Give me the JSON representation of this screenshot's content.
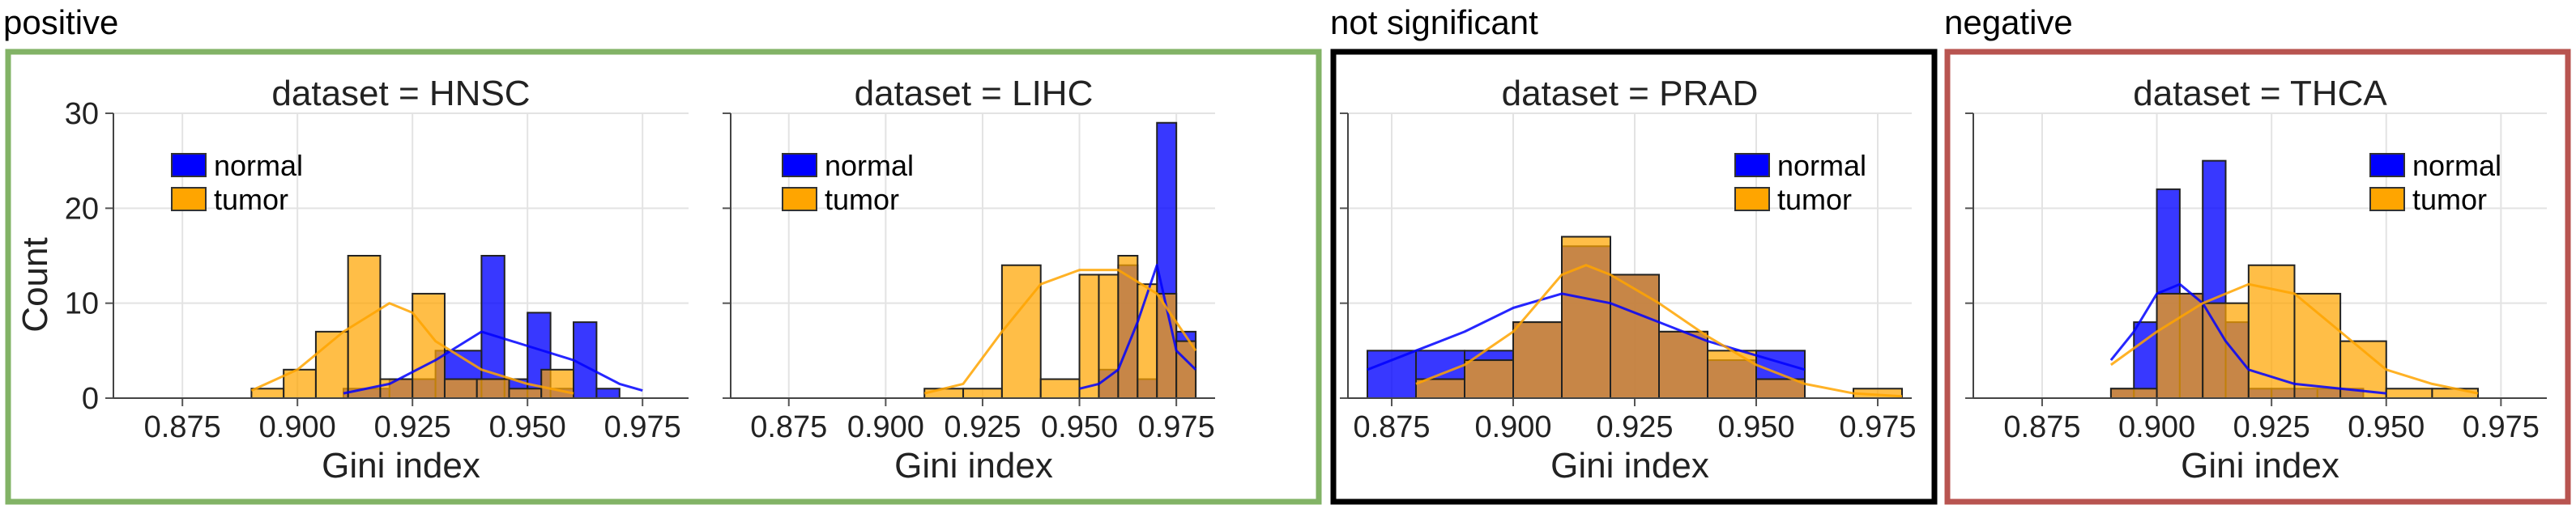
{
  "groups": [
    {
      "label": "positive",
      "color": "#82b366"
    },
    {
      "label": "not significant",
      "color": "#000000"
    },
    {
      "label": "negative",
      "color": "#b85450"
    }
  ],
  "colors": {
    "normal": "#0000ff",
    "tumor": "#ffa500"
  },
  "chart_data": [
    {
      "type": "histogram",
      "group": "positive",
      "title": "dataset = HNSC",
      "xlabel": "Gini index",
      "ylabel": "Count",
      "xlim": [
        0.86,
        0.985
      ],
      "ylim": [
        0,
        30
      ],
      "xticks": [
        "0.875",
        "0.900",
        "0.925",
        "0.950",
        "0.975"
      ],
      "yticks": [
        "0",
        "10",
        "20",
        "30"
      ],
      "grid": true,
      "legend": {
        "position": "upper-left",
        "entries": [
          "normal",
          "tumor"
        ]
      },
      "series": [
        {
          "name": "normal",
          "bins": [
            [
              0.91,
              0.92,
              1
            ],
            [
              0.92,
              0.93,
              2
            ],
            [
              0.93,
              0.94,
              5
            ],
            [
              0.94,
              0.945,
              15
            ],
            [
              0.945,
              0.95,
              2
            ],
            [
              0.95,
              0.955,
              9
            ],
            [
              0.955,
              0.96,
              1
            ],
            [
              0.96,
              0.965,
              8
            ],
            [
              0.965,
              0.97,
              1
            ]
          ],
          "kde": [
            [
              0.91,
              0.5
            ],
            [
              0.92,
              1.5
            ],
            [
              0.93,
              4
            ],
            [
              0.94,
              7
            ],
            [
              0.95,
              5.5
            ],
            [
              0.96,
              4
            ],
            [
              0.97,
              1.5
            ],
            [
              0.975,
              0.8
            ]
          ]
        },
        {
          "name": "tumor",
          "bins": [
            [
              0.89,
              0.897,
              1
            ],
            [
              0.897,
              0.904,
              3
            ],
            [
              0.904,
              0.911,
              7
            ],
            [
              0.911,
              0.918,
              15
            ],
            [
              0.918,
              0.925,
              2
            ],
            [
              0.925,
              0.932,
              11
            ],
            [
              0.932,
              0.939,
              2
            ],
            [
              0.939,
              0.946,
              2
            ],
            [
              0.946,
              0.953,
              1
            ],
            [
              0.953,
              0.96,
              3
            ]
          ],
          "kde": [
            [
              0.89,
              0.8
            ],
            [
              0.9,
              3
            ],
            [
              0.91,
              7
            ],
            [
              0.92,
              10
            ],
            [
              0.925,
              9
            ],
            [
              0.93,
              6
            ],
            [
              0.94,
              3
            ],
            [
              0.95,
              1.5
            ],
            [
              0.96,
              0.5
            ]
          ]
        }
      ]
    },
    {
      "type": "histogram",
      "group": "positive",
      "title": "dataset = LIHC",
      "xlabel": "Gini index",
      "ylabel": "",
      "xlim": [
        0.86,
        0.985
      ],
      "ylim": [
        0,
        30
      ],
      "xticks": [
        "0.875",
        "0.900",
        "0.925",
        "0.950",
        "0.975"
      ],
      "yticks": [],
      "grid": true,
      "legend": {
        "position": "upper-left",
        "entries": [
          "normal",
          "tumor"
        ]
      },
      "series": [
        {
          "name": "normal",
          "bins": [
            [
              0.955,
              0.96,
              3
            ],
            [
              0.96,
              0.965,
              14
            ],
            [
              0.965,
              0.97,
              2
            ],
            [
              0.97,
              0.975,
              29
            ],
            [
              0.975,
              0.98,
              7
            ]
          ],
          "kde": [
            [
              0.95,
              1
            ],
            [
              0.955,
              1.5
            ],
            [
              0.96,
              3
            ],
            [
              0.965,
              8
            ],
            [
              0.97,
              14
            ],
            [
              0.975,
              5
            ],
            [
              0.98,
              3
            ]
          ]
        },
        {
          "name": "tumor",
          "bins": [
            [
              0.91,
              0.92,
              1
            ],
            [
              0.92,
              0.93,
              1
            ],
            [
              0.93,
              0.94,
              14
            ],
            [
              0.94,
              0.95,
              2
            ],
            [
              0.95,
              0.955,
              13
            ],
            [
              0.955,
              0.96,
              13
            ],
            [
              0.96,
              0.965,
              15
            ],
            [
              0.965,
              0.97,
              12
            ],
            [
              0.97,
              0.975,
              11
            ],
            [
              0.975,
              0.98,
              6
            ]
          ],
          "kde": [
            [
              0.91,
              0.5
            ],
            [
              0.92,
              1.5
            ],
            [
              0.93,
              7
            ],
            [
              0.94,
              12
            ],
            [
              0.95,
              13.5
            ],
            [
              0.96,
              13.5
            ],
            [
              0.97,
              11
            ],
            [
              0.98,
              5
            ]
          ]
        }
      ]
    },
    {
      "type": "histogram",
      "group": "not significant",
      "title": "dataset = PRAD",
      "xlabel": "Gini index",
      "ylabel": "",
      "xlim": [
        0.866,
        0.982
      ],
      "ylim": [
        0,
        30
      ],
      "xticks": [
        "0.875",
        "0.900",
        "0.925",
        "0.950",
        "0.975"
      ],
      "yticks": [],
      "grid": true,
      "legend": {
        "position": "upper-right",
        "entries": [
          "normal",
          "tumor"
        ]
      },
      "series": [
        {
          "name": "normal",
          "bins": [
            [
              0.87,
              0.88,
              5
            ],
            [
              0.88,
              0.89,
              5
            ],
            [
              0.89,
              0.9,
              5
            ],
            [
              0.9,
              0.91,
              8
            ],
            [
              0.91,
              0.92,
              16
            ],
            [
              0.92,
              0.93,
              13
            ],
            [
              0.93,
              0.94,
              7
            ],
            [
              0.94,
              0.95,
              4
            ],
            [
              0.95,
              0.96,
              5
            ]
          ],
          "kde": [
            [
              0.87,
              3
            ],
            [
              0.88,
              5
            ],
            [
              0.89,
              7
            ],
            [
              0.9,
              9.5
            ],
            [
              0.91,
              11
            ],
            [
              0.92,
              10
            ],
            [
              0.93,
              8
            ],
            [
              0.94,
              6
            ],
            [
              0.95,
              4.5
            ],
            [
              0.96,
              3
            ]
          ]
        },
        {
          "name": "tumor",
          "bins": [
            [
              0.88,
              0.89,
              2
            ],
            [
              0.89,
              0.9,
              4
            ],
            [
              0.9,
              0.91,
              8
            ],
            [
              0.91,
              0.92,
              17
            ],
            [
              0.92,
              0.93,
              13
            ],
            [
              0.93,
              0.94,
              7
            ],
            [
              0.94,
              0.95,
              5
            ],
            [
              0.95,
              0.96,
              2
            ],
            [
              0.97,
              0.98,
              1
            ]
          ],
          "kde": [
            [
              0.88,
              1.5
            ],
            [
              0.89,
              3.5
            ],
            [
              0.9,
              7
            ],
            [
              0.91,
              13
            ],
            [
              0.915,
              14
            ],
            [
              0.92,
              13
            ],
            [
              0.93,
              10
            ],
            [
              0.94,
              6.5
            ],
            [
              0.95,
              3.5
            ],
            [
              0.96,
              1.5
            ],
            [
              0.97,
              0.5
            ],
            [
              0.98,
              0.2
            ]
          ]
        }
      ]
    },
    {
      "type": "histogram",
      "group": "negative",
      "title": "dataset = THCA",
      "xlabel": "Gini index",
      "ylabel": "",
      "xlim": [
        0.86,
        0.985
      ],
      "ylim": [
        0,
        30
      ],
      "xticks": [
        "0.875",
        "0.900",
        "0.925",
        "0.950",
        "0.975"
      ],
      "yticks": [],
      "grid": true,
      "legend": {
        "position": "upper-right",
        "entries": [
          "normal",
          "tumor"
        ]
      },
      "series": [
        {
          "name": "normal",
          "bins": [
            [
              0.89,
              0.895,
              1
            ],
            [
              0.895,
              0.9,
              8
            ],
            [
              0.9,
              0.905,
              22
            ],
            [
              0.905,
              0.91,
              11
            ],
            [
              0.91,
              0.915,
              25
            ],
            [
              0.915,
              0.92,
              8
            ],
            [
              0.92,
              0.925,
              1
            ],
            [
              0.925,
              0.93,
              1
            ],
            [
              0.93,
              0.935,
              1
            ],
            [
              0.935,
              0.94,
              1
            ],
            [
              0.94,
              0.945,
              1
            ]
          ],
          "kde": [
            [
              0.89,
              4
            ],
            [
              0.895,
              7
            ],
            [
              0.9,
              11
            ],
            [
              0.905,
              12
            ],
            [
              0.91,
              10
            ],
            [
              0.915,
              6
            ],
            [
              0.92,
              3
            ],
            [
              0.93,
              1.5
            ],
            [
              0.94,
              1
            ],
            [
              0.95,
              0.5
            ]
          ]
        },
        {
          "name": "tumor",
          "bins": [
            [
              0.89,
              0.9,
              1
            ],
            [
              0.9,
              0.91,
              11
            ],
            [
              0.91,
              0.92,
              10
            ],
            [
              0.92,
              0.93,
              14
            ],
            [
              0.93,
              0.94,
              11
            ],
            [
              0.94,
              0.95,
              6
            ],
            [
              0.95,
              0.96,
              1
            ],
            [
              0.96,
              0.97,
              1
            ]
          ],
          "kde": [
            [
              0.89,
              3.5
            ],
            [
              0.9,
              7
            ],
            [
              0.91,
              10
            ],
            [
              0.92,
              12
            ],
            [
              0.93,
              11
            ],
            [
              0.94,
              7
            ],
            [
              0.95,
              3
            ],
            [
              0.96,
              1.5
            ],
            [
              0.97,
              0.5
            ]
          ]
        }
      ]
    }
  ]
}
